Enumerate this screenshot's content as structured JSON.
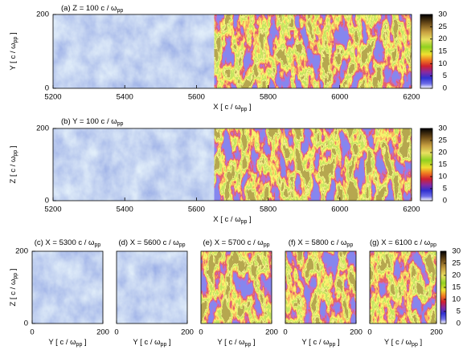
{
  "chart_data": [
    {
      "type": "heatmap",
      "title": {
        "text": "(a) Z = 100 c / ω",
        "sub": "pp"
      },
      "xlabel": {
        "text": "X [ c / ω",
        "sub": "pp",
        "end": " ]"
      },
      "ylabel": {
        "text": "Y [ c / ω",
        "sub": "pp",
        "end": " ]"
      },
      "xlim": [
        5200,
        6200
      ],
      "xticks": [
        5200,
        5400,
        5600,
        5800,
        6000,
        6200
      ],
      "ylim": [
        0,
        200
      ],
      "yticks": [
        0,
        200
      ],
      "colorbar": {
        "lim": [
          0,
          30
        ],
        "ticks": [
          0,
          5,
          10,
          15,
          20,
          25,
          30
        ]
      }
    },
    {
      "type": "heatmap",
      "title": {
        "text": "(b) Y = 100 c / ω",
        "sub": "pp"
      },
      "xlabel": {
        "text": "X [ c / ω",
        "sub": "pp",
        "end": " ]"
      },
      "ylabel": {
        "text": "Z [ c / ω",
        "sub": "pp",
        "end": " ]"
      },
      "xlim": [
        5200,
        6200
      ],
      "xticks": [
        5200,
        5400,
        5600,
        5800,
        6000,
        6200
      ],
      "ylim": [
        0,
        200
      ],
      "yticks": [
        0,
        200
      ],
      "colorbar": {
        "lim": [
          0,
          30
        ],
        "ticks": [
          0,
          5,
          10,
          15,
          20,
          25,
          30
        ]
      }
    },
    {
      "type": "heatmap",
      "title": {
        "text": "(c) X = 5300 c / ω",
        "sub": "pp"
      },
      "xlabel": {
        "text": "Y [ c / ω",
        "sub": "pp",
        "end": " ]"
      },
      "ylabel": {
        "text": "Z [ c / ω",
        "sub": "pp",
        "end": " ]"
      },
      "xlim": [
        0,
        200
      ],
      "xticks": [
        0,
        200
      ],
      "ylim": [
        0,
        200
      ],
      "yticks": [
        0,
        200
      ]
    },
    {
      "type": "heatmap",
      "title": {
        "text": "(d) X = 5600 c / ω",
        "sub": "pp"
      },
      "xlabel": {
        "text": "Y [ c / ω",
        "sub": "pp",
        "end": " ]"
      },
      "xlim": [
        0,
        200
      ],
      "xticks": [
        0,
        200
      ]
    },
    {
      "type": "heatmap",
      "title": {
        "text": "(e) X = 5700 c / ω",
        "sub": "pp"
      },
      "xlabel": {
        "text": "Y [ c / ω",
        "sub": "pp",
        "end": " ]"
      },
      "xlim": [
        0,
        200
      ],
      "xticks": [
        0,
        200
      ]
    },
    {
      "type": "heatmap",
      "title": {
        "text": "(f) X = 5800 c / ω",
        "sub": "pp"
      },
      "xlabel": {
        "text": "Y [ c / ω",
        "sub": "pp",
        "end": " ]"
      },
      "xlim": [
        0,
        200
      ],
      "xticks": [
        0,
        200
      ]
    },
    {
      "type": "heatmap",
      "title": {
        "text": "(g) X = 6100 c / ω",
        "sub": "pp"
      },
      "xlabel": {
        "text": "Y [ c / ω",
        "sub": "pp",
        "end": " ]"
      },
      "xlim": [
        0,
        200
      ],
      "xticks": [
        0,
        200
      ],
      "colorbar": {
        "lim": [
          0,
          30
        ],
        "ticks": [
          0,
          5,
          10,
          15,
          20,
          25,
          30
        ]
      }
    }
  ]
}
